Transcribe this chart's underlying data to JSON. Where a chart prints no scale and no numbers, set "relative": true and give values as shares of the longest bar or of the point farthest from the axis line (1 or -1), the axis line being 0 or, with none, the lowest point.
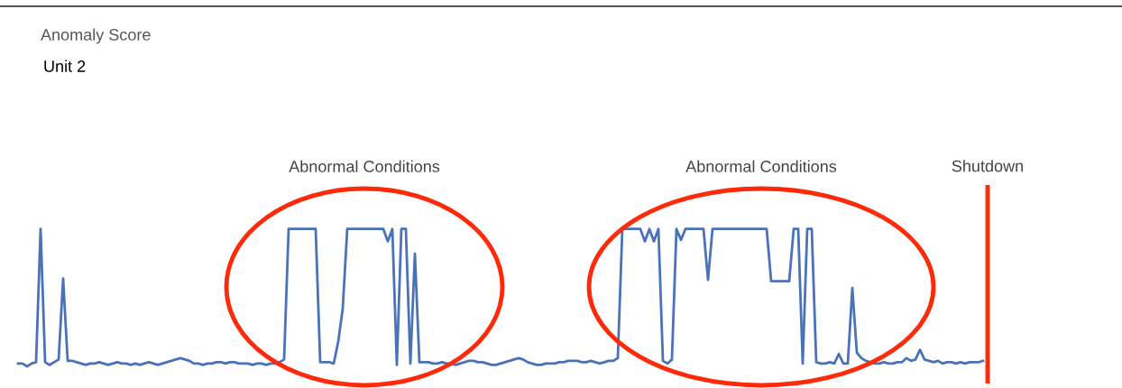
{
  "chart_data": {
    "type": "line",
    "title": "Anomaly Score",
    "subtitle": "Unit 2",
    "relative": true,
    "categories": [
      null,
      null,
      null,
      null,
      null,
      null,
      null,
      null,
      null,
      null,
      null,
      null,
      null,
      null,
      null,
      null,
      null,
      null,
      null,
      null,
      null,
      null,
      null,
      null,
      null,
      null,
      null,
      null,
      null,
      null,
      null,
      null,
      null,
      null,
      null,
      null,
      null,
      null,
      null,
      null,
      null,
      null,
      null,
      null,
      null,
      null,
      null,
      null,
      null,
      null,
      null,
      null,
      null,
      null,
      null,
      null,
      null,
      null,
      null,
      null,
      null,
      null,
      null,
      null,
      null,
      null,
      null,
      null,
      null,
      null,
      null,
      null,
      null,
      null,
      null,
      null,
      null,
      null,
      null,
      null,
      null,
      null,
      null,
      null,
      null,
      null,
      null,
      null,
      null,
      null,
      null,
      null,
      null,
      null,
      null,
      null,
      null,
      null,
      null,
      null,
      null,
      null,
      null,
      null,
      null,
      null,
      null,
      null,
      null,
      null,
      null,
      null,
      null,
      null,
      null,
      null,
      null,
      null,
      null,
      null,
      null,
      null,
      null,
      null,
      null,
      null,
      null,
      null,
      null,
      null,
      null,
      null,
      null,
      null,
      null,
      null,
      null,
      null,
      null,
      null,
      null,
      null,
      null,
      null,
      null,
      null,
      null,
      null,
      null,
      null,
      null,
      null,
      null,
      null,
      null,
      null,
      null,
      null,
      null,
      null,
      null,
      null,
      null,
      null,
      null,
      null,
      null,
      null,
      null,
      null,
      null,
      null,
      null,
      null,
      null,
      null,
      null,
      null,
      null,
      null,
      null,
      null,
      null,
      null,
      null,
      null,
      null,
      null,
      null,
      null,
      null,
      null,
      null,
      null,
      null,
      null,
      null,
      null,
      null,
      null,
      null,
      null,
      null,
      null,
      null,
      null,
      null,
      null,
      null,
      null,
      null,
      null,
      null,
      null,
      null
    ],
    "series": [
      {
        "color": "#4a72b8",
        "values": [
          0.02,
          0.02,
          0.0,
          0.02,
          0.03,
          1.0,
          0.03,
          0.01,
          0.03,
          0.05,
          0.64,
          0.04,
          0.04,
          0.03,
          0.02,
          0.01,
          0.02,
          0.02,
          0.03,
          0.02,
          0.01,
          0.02,
          0.03,
          0.02,
          0.02,
          0.01,
          0.02,
          0.01,
          0.02,
          0.03,
          0.02,
          0.01,
          0.02,
          0.03,
          0.04,
          0.05,
          0.06,
          0.05,
          0.04,
          0.02,
          0.02,
          0.01,
          0.02,
          0.02,
          0.03,
          0.03,
          0.02,
          0.03,
          0.03,
          0.02,
          0.02,
          0.02,
          0.01,
          0.02,
          0.02,
          0.01,
          0.02,
          0.02,
          0.03,
          0.05,
          1.0,
          1.0,
          1.0,
          1.0,
          1.0,
          1.0,
          1.0,
          0.03,
          0.03,
          0.03,
          0.02,
          0.18,
          0.42,
          1.0,
          1.0,
          1.0,
          1.0,
          1.0,
          1.0,
          1.0,
          1.0,
          1.0,
          0.91,
          1.0,
          0.01,
          1.0,
          1.0,
          0.02,
          0.82,
          0.03,
          0.03,
          0.03,
          0.02,
          0.02,
          0.03,
          0.02,
          0.02,
          0.01,
          0.02,
          0.03,
          0.04,
          0.04,
          0.03,
          0.03,
          0.02,
          0.01,
          0.01,
          0.02,
          0.03,
          0.04,
          0.05,
          0.06,
          0.05,
          0.03,
          0.02,
          0.01,
          0.01,
          0.02,
          0.02,
          0.02,
          0.03,
          0.03,
          0.04,
          0.04,
          0.04,
          0.03,
          0.03,
          0.04,
          0.03,
          0.02,
          0.03,
          0.04,
          0.04,
          0.06,
          1.0,
          1.0,
          1.0,
          1.0,
          1.0,
          0.91,
          1.0,
          0.91,
          1.0,
          0.04,
          0.02,
          0.05,
          1.0,
          0.92,
          1.0,
          1.0,
          1.0,
          1.0,
          1.0,
          0.63,
          1.0,
          1.0,
          1.0,
          1.0,
          1.0,
          1.0,
          1.0,
          1.0,
          1.0,
          1.0,
          1.0,
          1.0,
          1.0,
          0.62,
          0.62,
          0.62,
          0.62,
          0.62,
          1.0,
          1.0,
          0.02,
          1.0,
          1.0,
          0.03,
          0.02,
          0.02,
          0.03,
          0.02,
          0.09,
          0.02,
          0.02,
          0.57,
          0.1,
          0.06,
          0.04,
          0.03,
          0.02,
          0.02,
          0.03,
          0.02,
          0.02,
          0.03,
          0.03,
          0.06,
          0.04,
          0.05,
          0.12,
          0.05,
          0.04,
          0.03,
          0.04,
          0.02,
          0.03,
          0.03,
          0.02,
          0.03,
          0.02,
          0.03,
          0.03,
          0.03,
          0.04
        ]
      }
    ],
    "annotations": [
      "Abnormal Conditions",
      "Abnormal Conditions",
      "Shutdown"
    ]
  }
}
